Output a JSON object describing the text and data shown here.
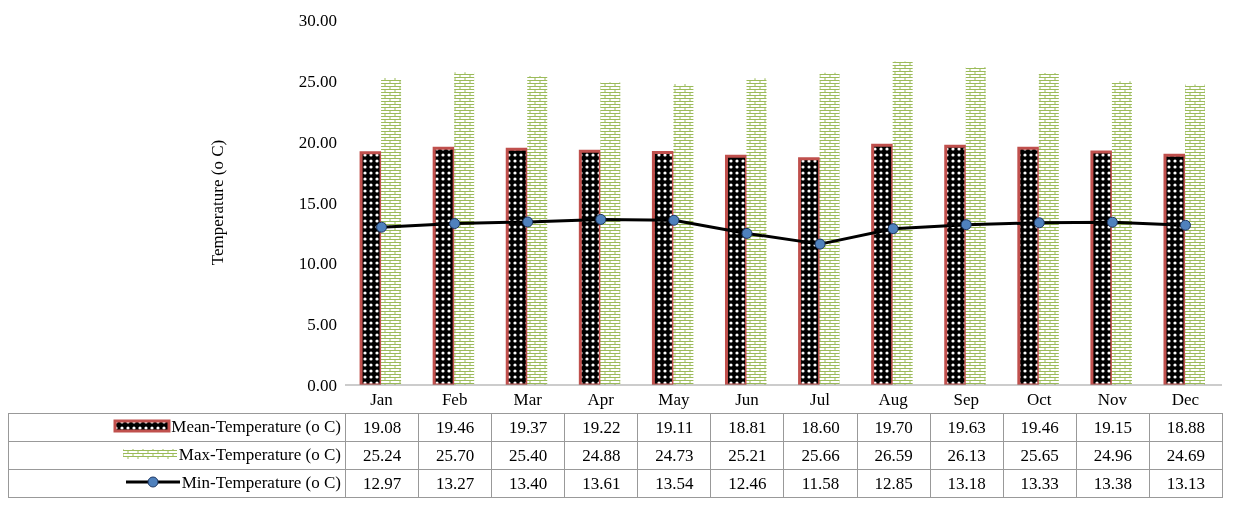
{
  "chart_data": {
    "type": "bar",
    "ylabel": "Temperature  (o C)",
    "categories": [
      "Jan",
      "Feb",
      "Mar",
      "Apr",
      "May",
      "Jun",
      "Jul",
      "Aug",
      "Sep",
      "Oct",
      "Nov",
      "Dec"
    ],
    "series": [
      {
        "name": "Mean-Temperature (o C)",
        "color": "#c0504d",
        "values": [
          19.08,
          19.46,
          19.37,
          19.22,
          19.11,
          18.81,
          18.6,
          19.7,
          19.63,
          19.46,
          19.15,
          18.88
        ],
        "value_labels": [
          "19.08",
          "19.46",
          "19.37",
          "19.22",
          "19.11",
          "18.81",
          "18.60",
          "19.70",
          "19.63",
          "19.46",
          "19.15",
          "18.88"
        ]
      },
      {
        "name": "Max-Temperature (o C)",
        "color": "#9bbb59",
        "values": [
          25.24,
          25.7,
          25.4,
          24.88,
          24.73,
          25.21,
          25.66,
          26.59,
          26.13,
          25.65,
          24.96,
          24.69
        ],
        "value_labels": [
          "25.24",
          "25.70",
          "25.40",
          "24.88",
          "24.73",
          "25.21",
          "25.66",
          "26.59",
          "26.13",
          "25.65",
          "24.96",
          "24.69"
        ]
      },
      {
        "name": "Min-Temperature (o C)",
        "type": "line",
        "color": "#000000",
        "values": [
          12.97,
          13.27,
          13.4,
          13.61,
          13.54,
          12.46,
          11.58,
          12.85,
          13.18,
          13.33,
          13.38,
          13.13
        ],
        "value_labels": [
          "12.97",
          "13.27",
          "13.40",
          "13.61",
          "13.54",
          "12.46",
          "11.58",
          "12.85",
          "13.18",
          "13.33",
          "13.38",
          "13.13"
        ]
      }
    ],
    "ylim": [
      0,
      30
    ],
    "yticks": [
      {
        "value": 0,
        "label": "0.00"
      },
      {
        "value": 5,
        "label": "5.00"
      },
      {
        "value": 10,
        "label": "10.00"
      },
      {
        "value": 15,
        "label": "15.00"
      },
      {
        "value": 20,
        "label": "20.00"
      },
      {
        "value": 25,
        "label": "25.00"
      },
      {
        "value": 30,
        "label": "30.00"
      }
    ],
    "legend": "bottom",
    "marker": "circle",
    "line_style": "solid"
  }
}
